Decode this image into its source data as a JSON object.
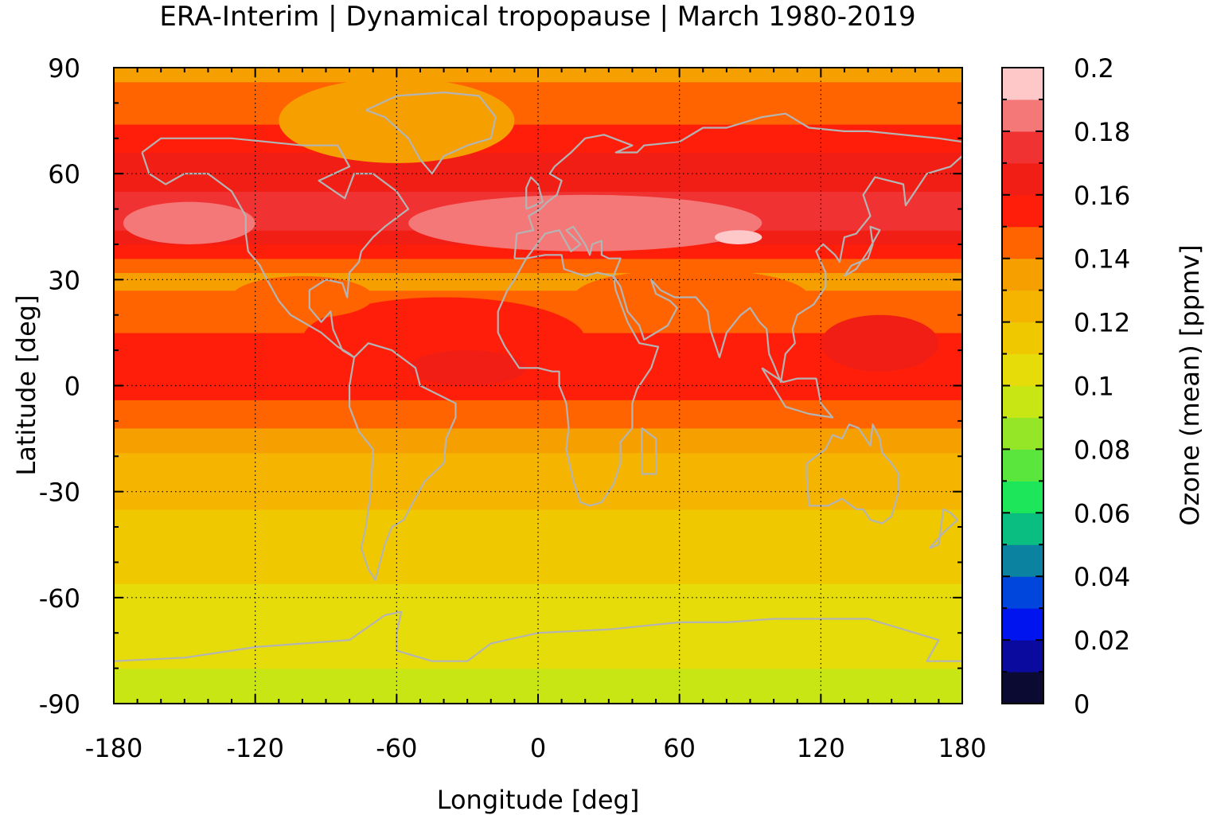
{
  "chart_data": {
    "type": "heatmap",
    "title": "ERA-Interim | Dynamical tropopause | March 1980-2019",
    "xlabel": "Longitude [deg]",
    "ylabel": "Latitude [deg]",
    "colorbar_label": "Ozone (mean) [ppmv]",
    "xlim": [
      -180,
      180
    ],
    "ylim": [
      -90,
      90
    ],
    "xticks": [
      -180,
      -120,
      -60,
      0,
      60,
      120,
      180
    ],
    "yticks": [
      -90,
      -60,
      -30,
      0,
      30,
      60,
      90
    ],
    "colorbar_range": [
      0,
      0.2
    ],
    "colorbar_ticks": [
      "0",
      "0.02",
      "0.04",
      "0.06",
      "0.08",
      "0.1",
      "0.12",
      "0.14",
      "0.16",
      "0.18",
      "0.2"
    ],
    "grid": true,
    "coastlines": true,
    "colorbar_colors": [
      "#0a0a32",
      "#0a0a9e",
      "#0014f0",
      "#0046dc",
      "#0a82a0",
      "#0abe82",
      "#1ee65a",
      "#5ae63c",
      "#96e628",
      "#c8e614",
      "#e6dc0a",
      "#f0c800",
      "#f5b400",
      "#f5a000",
      "#ff6400",
      "#ff1e0a",
      "#f01e14",
      "#f03232",
      "#f57878",
      "#ffc8c8"
    ],
    "latitude_band_values": [
      {
        "lat": -90,
        "value": 0.098
      },
      {
        "lat": -82,
        "value": 0.099
      },
      {
        "lat": -75,
        "value": 0.103
      },
      {
        "lat": -62,
        "value": 0.107
      },
      {
        "lat": -50,
        "value": 0.113
      },
      {
        "lat": -40,
        "value": 0.118
      },
      {
        "lat": -30,
        "value": 0.122
      },
      {
        "lat": -20,
        "value": 0.128
      },
      {
        "lat": -12,
        "value": 0.14
      },
      {
        "lat": -4,
        "value": 0.15
      },
      {
        "lat": 0,
        "value": 0.155
      },
      {
        "lat": 8,
        "value": 0.158
      },
      {
        "lat": 15,
        "value": 0.15
      },
      {
        "lat": 22,
        "value": 0.15
      },
      {
        "lat": 30,
        "value": 0.135
      },
      {
        "lat": 36,
        "value": 0.15
      },
      {
        "lat": 42,
        "value": 0.165
      },
      {
        "lat": 46,
        "value": 0.178
      },
      {
        "lat": 52,
        "value": 0.175
      },
      {
        "lat": 58,
        "value": 0.165
      },
      {
        "lat": 66,
        "value": 0.16
      },
      {
        "lat": 74,
        "value": 0.15
      },
      {
        "lat": 82,
        "value": 0.142
      },
      {
        "lat": 90,
        "value": 0.138
      }
    ]
  }
}
